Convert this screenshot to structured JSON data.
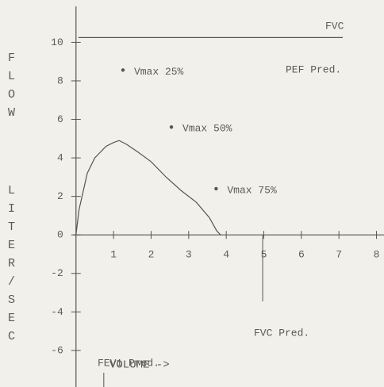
{
  "chart_data": {
    "type": "line",
    "ylabel": [
      "FLOW",
      "LITER/SEC"
    ],
    "xlabel": "VOLUME ->",
    "top_label": "FVC",
    "x": [
      0,
      0.08,
      0.3,
      0.5,
      0.8,
      1.0,
      1.15,
      1.35,
      1.65,
      2.0,
      2.4,
      2.8,
      3.2,
      3.55,
      3.75,
      3.85
    ],
    "values": [
      0,
      1.3,
      3.2,
      4.0,
      4.6,
      4.8,
      4.9,
      4.7,
      4.3,
      3.8,
      3.0,
      2.3,
      1.7,
      0.9,
      0.2,
      0
    ],
    "color": "#555555",
    "xlim": [
      -0.08,
      8.2
    ],
    "ylim": [
      -7.9,
      12.2
    ],
    "xticks": [
      1,
      2,
      3,
      4,
      5,
      6,
      7,
      8
    ],
    "yticks": [
      10,
      8,
      6,
      4,
      2,
      0,
      -2,
      -4,
      -6
    ],
    "pef_pred": {
      "label": "PEF Pred.",
      "value": 10.25
    },
    "fvc_pred": {
      "label": "FVC Pred.",
      "value": 4.97
    },
    "fev1_pred": {
      "label": "FEV1 Pred.",
      "value": 0.74
    },
    "points": [
      {
        "label": "Vmax 25%",
        "x": 1.25,
        "y": 8.56
      },
      {
        "label": "Vmax 50%",
        "x": 2.54,
        "y": 5.6
      },
      {
        "label": "Vmax 75%",
        "x": 3.73,
        "y": 2.4
      }
    ]
  }
}
